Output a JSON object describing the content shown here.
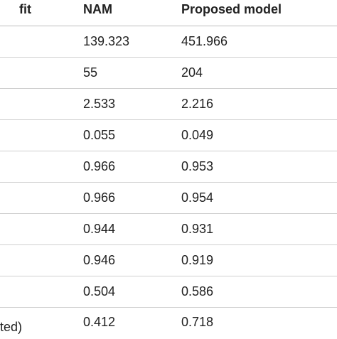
{
  "table": {
    "headers": [
      "fit",
      "NAM",
      "Proposed model"
    ],
    "rows": [
      {
        "label": "",
        "nam": "139.323",
        "proposed": "451.966"
      },
      {
        "label": "",
        "nam": "55",
        "proposed": "204"
      },
      {
        "label": "",
        "nam": "2.533",
        "proposed": "2.216"
      },
      {
        "label": "",
        "nam": "0.055",
        "proposed": "0.049"
      },
      {
        "label": "",
        "nam": "0.966",
        "proposed": "0.953"
      },
      {
        "label": "",
        "nam": "0.966",
        "proposed": "0.954"
      },
      {
        "label": "",
        "nam": "0.944",
        "proposed": "0.931"
      },
      {
        "label": "",
        "nam": "0.946",
        "proposed": "0.919"
      },
      {
        "label": "",
        "nam": "0.504",
        "proposed": "0.586"
      },
      {
        "label": "ted)",
        "nam": "0.412",
        "proposed": "0.718"
      }
    ]
  }
}
